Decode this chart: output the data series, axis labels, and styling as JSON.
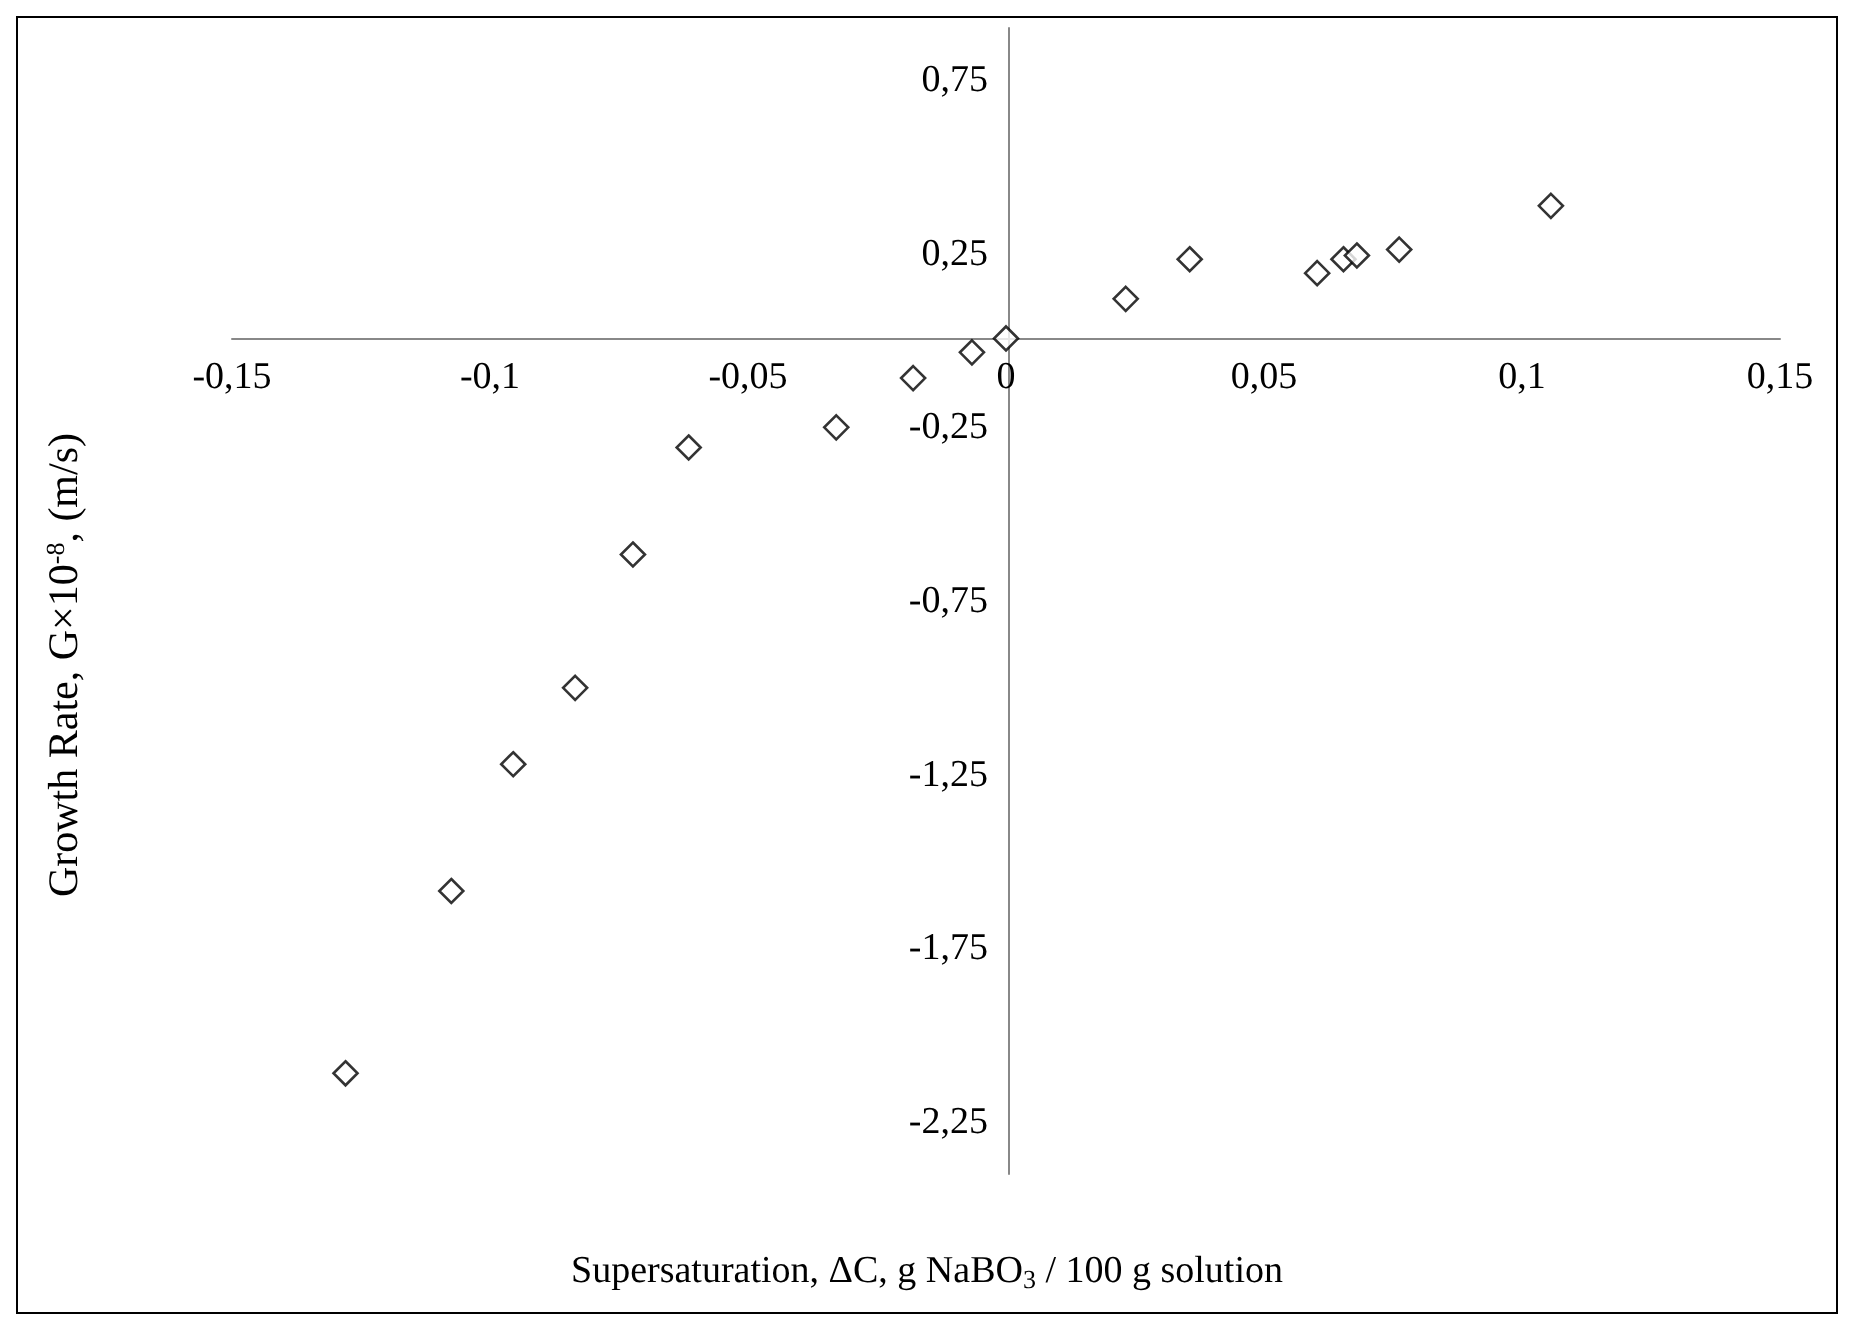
{
  "chart_data": {
    "type": "scatter",
    "xlabel": "Supersaturation, ΔC, g NaBO$_{3}$ / 100 g solution",
    "ylabel": "Growth Rate, G×10$^{-8}$, (m/s)",
    "x": [
      -0.128,
      -0.1075,
      -0.0955,
      -0.0835,
      -0.0723,
      -0.0615,
      -0.0329,
      -0.018,
      -0.0066,
      0,
      0.0232,
      0.0356,
      0.0603,
      0.0654,
      0.068,
      0.0762,
      0.1056
    ],
    "values": [
      -2.11,
      -1.585,
      -1.22,
      -1.0,
      -0.616,
      -0.308,
      -0.25,
      -0.108,
      -0.034,
      0.006,
      0.12,
      0.234,
      0.194,
      0.234,
      0.245,
      0.262,
      0.388
    ],
    "color": "#000000",
    "marker": "diamond",
    "xlim": [
      -0.15,
      0.15
    ],
    "xticks": [
      {
        "value": -0.15,
        "label": "-0,15"
      },
      {
        "value": -0.1,
        "label": "-0,1"
      },
      {
        "value": -0.05,
        "label": "-0,05"
      },
      {
        "value": 0,
        "label": "0"
      },
      {
        "value": 0.05,
        "label": "0,05"
      },
      {
        "value": 0.1,
        "label": "0,1"
      },
      {
        "value": 0.15,
        "label": "0,15"
      }
    ],
    "ylim": [
      -2.4,
      0.9
    ],
    "yticks": [
      {
        "value": -2.25,
        "label": "-2,25"
      },
      {
        "value": -1.75,
        "label": "-1,75"
      },
      {
        "value": -1.25,
        "label": "-1,25"
      },
      {
        "value": -0.75,
        "label": "-0,75"
      },
      {
        "value": -0.25,
        "label": "-0,25"
      },
      {
        "value": 0.25,
        "label": "0,25"
      },
      {
        "value": 0.75,
        "label": "0,75"
      }
    ]
  }
}
